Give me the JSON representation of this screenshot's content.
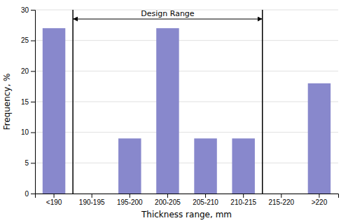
{
  "chart_data": {
    "type": "bar",
    "categories": [
      "<190",
      "190-195",
      "195-200",
      "200-205",
      "205-210",
      "210-215",
      "215-220",
      ">220"
    ],
    "values": [
      27,
      0,
      9,
      27,
      9,
      9,
      0,
      18
    ],
    "color": "#8888cc",
    "x_label": "Thickness range, mm",
    "y_label": "Frequency, %",
    "ylim": [
      0,
      30
    ],
    "yticks": [
      0,
      5,
      10,
      15,
      20,
      25,
      30
    ],
    "grid": true,
    "annotations": [
      {
        "text": "Design Range",
        "y": 28.5,
        "x_start": 0.5,
        "x_end": 5.5
      }
    ]
  }
}
